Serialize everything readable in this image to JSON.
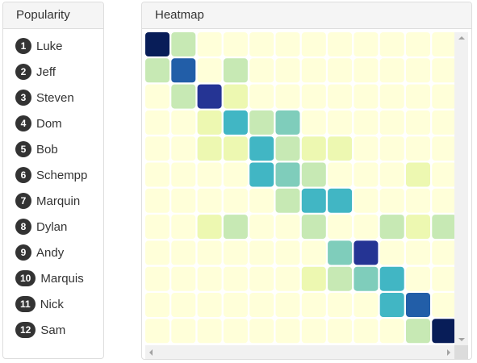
{
  "popularity": {
    "title": "Popularity",
    "items": [
      {
        "rank": "1",
        "name": "Luke"
      },
      {
        "rank": "2",
        "name": "Jeff"
      },
      {
        "rank": "3",
        "name": "Steven"
      },
      {
        "rank": "4",
        "name": "Dom"
      },
      {
        "rank": "5",
        "name": "Bob"
      },
      {
        "rank": "6",
        "name": "Schempp"
      },
      {
        "rank": "7",
        "name": "Marquin"
      },
      {
        "rank": "8",
        "name": "Dylan"
      },
      {
        "rank": "9",
        "name": "Andy"
      },
      {
        "rank": "10",
        "name": "Marquis"
      },
      {
        "rank": "11",
        "name": "Nick"
      },
      {
        "rank": "12",
        "name": "Sam"
      }
    ]
  },
  "heatmap": {
    "title": "Heatmap"
  },
  "colors": {
    "badge": "#333333",
    "scale": [
      "#ffffd9",
      "#edf8b1",
      "#c7e9b4",
      "#7fcdbb",
      "#41b6c4",
      "#1d91c0",
      "#225ea8",
      "#253494",
      "#081d58"
    ]
  },
  "icons": {
    "scroll_up": "arrow-up-icon",
    "scroll_down": "arrow-down-icon",
    "scroll_left": "arrow-left-icon",
    "scroll_right": "arrow-right-icon"
  },
  "chart_data": {
    "type": "heatmap",
    "scale_levels": 9,
    "visible_rows": 12,
    "visible_columns": 12,
    "values": [
      [
        8,
        2,
        0,
        0,
        0,
        0,
        0,
        0,
        0,
        0,
        0,
        0
      ],
      [
        2,
        6,
        0,
        2,
        0,
        0,
        0,
        0,
        0,
        0,
        0,
        0
      ],
      [
        0,
        2,
        7,
        1,
        0,
        0,
        0,
        0,
        0,
        0,
        0,
        0
      ],
      [
        0,
        0,
        1,
        4,
        2,
        3,
        0,
        0,
        0,
        0,
        0,
        0
      ],
      [
        0,
        0,
        1,
        1,
        4,
        2,
        1,
        1,
        0,
        0,
        0,
        0
      ],
      [
        0,
        0,
        0,
        0,
        4,
        3,
        2,
        0,
        0,
        0,
        1,
        0
      ],
      [
        0,
        0,
        0,
        0,
        0,
        2,
        4,
        4,
        0,
        0,
        0,
        0
      ],
      [
        0,
        0,
        1,
        2,
        0,
        0,
        2,
        0,
        0,
        2,
        1,
        2
      ],
      [
        0,
        0,
        0,
        0,
        0,
        0,
        0,
        3,
        7,
        0,
        0,
        0
      ],
      [
        0,
        0,
        0,
        0,
        0,
        0,
        1,
        2,
        3,
        4,
        0,
        0
      ],
      [
        0,
        0,
        0,
        0,
        0,
        0,
        0,
        0,
        0,
        4,
        6,
        0
      ],
      [
        0,
        0,
        0,
        0,
        0,
        0,
        0,
        0,
        0,
        0,
        2,
        8
      ]
    ]
  }
}
